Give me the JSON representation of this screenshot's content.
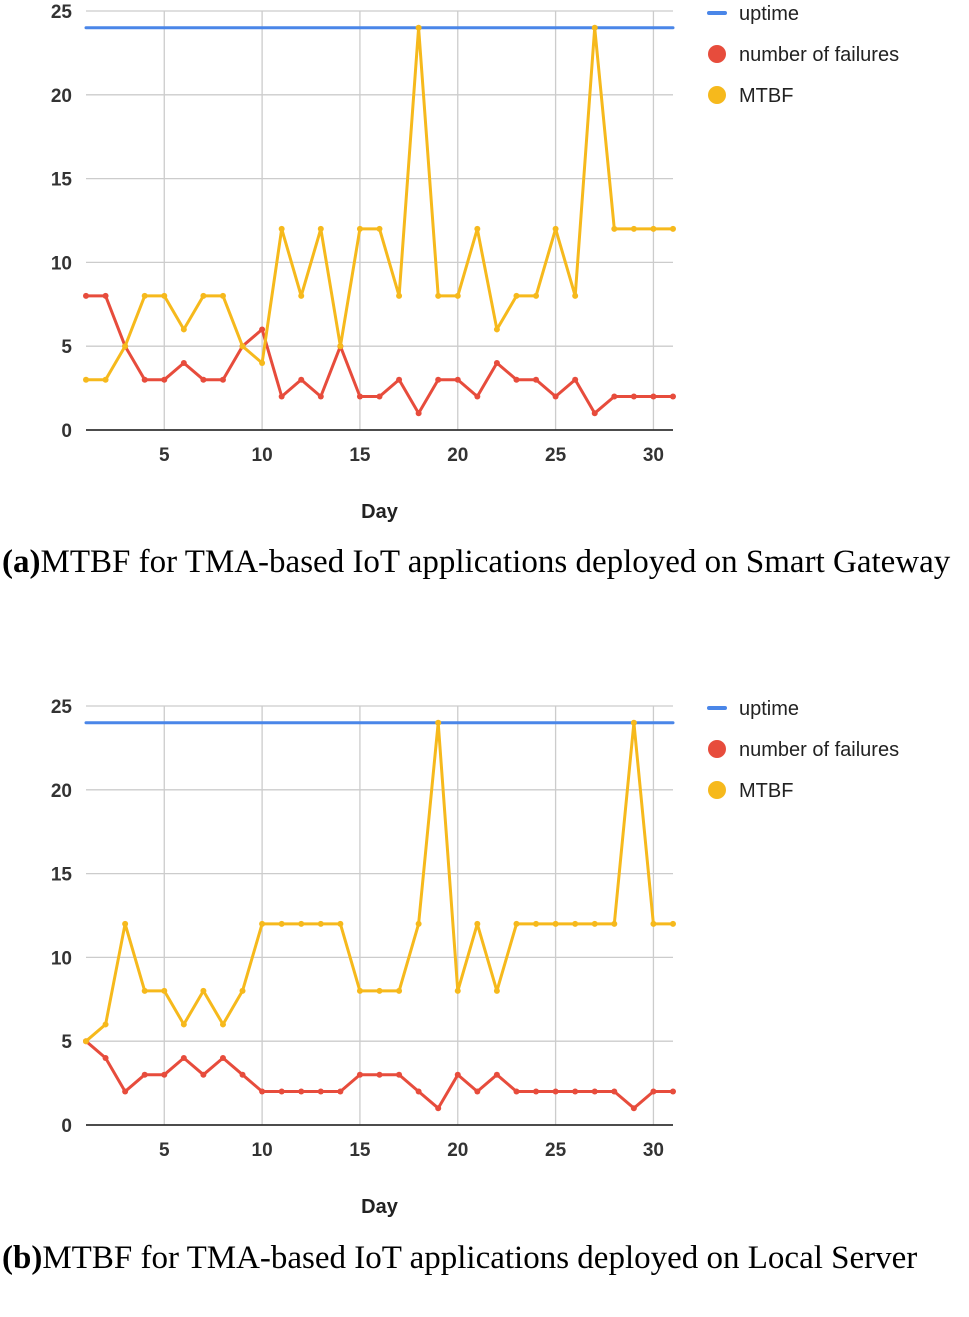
{
  "chart_data": [
    {
      "type": "line",
      "xlabel": "Day",
      "ylabel": "",
      "xlim": [
        1,
        31
      ],
      "ylim": [
        0,
        25
      ],
      "xticks": [
        5,
        10,
        15,
        20,
        25,
        30
      ],
      "yticks": [
        0,
        5,
        10,
        15,
        20,
        25
      ],
      "grid": true,
      "legend": "top-right",
      "x": [
        1,
        2,
        3,
        4,
        5,
        6,
        7,
        8,
        9,
        10,
        11,
        12,
        13,
        14,
        15,
        16,
        17,
        18,
        19,
        20,
        21,
        22,
        23,
        24,
        25,
        26,
        27,
        28,
        29,
        30,
        31
      ],
      "series": [
        {
          "name": "uptime",
          "color": "#4a86e8",
          "values": [
            24,
            24,
            24,
            24,
            24,
            24,
            24,
            24,
            24,
            24,
            24,
            24,
            24,
            24,
            24,
            24,
            24,
            24,
            24,
            24,
            24,
            24,
            24,
            24,
            24,
            24,
            24,
            24,
            24,
            24,
            24
          ]
        },
        {
          "name": "number of failures",
          "color": "#e74c3c",
          "values": [
            8,
            8,
            5,
            3,
            3,
            4,
            3,
            3,
            5,
            6,
            2,
            3,
            2,
            5,
            2,
            2,
            3,
            1,
            3,
            3,
            2,
            4,
            3,
            3,
            2,
            3,
            1,
            2,
            2,
            2,
            2
          ]
        },
        {
          "name": "MTBF",
          "color": "#f6b91c",
          "values": [
            3,
            3,
            5,
            8,
            8,
            6,
            8,
            8,
            5,
            4,
            12,
            8,
            12,
            5,
            12,
            12,
            8,
            24,
            8,
            8,
            12,
            6,
            8,
            8,
            12,
            8,
            24,
            12,
            12,
            12,
            12
          ]
        }
      ]
    },
    {
      "type": "line",
      "xlabel": "Day",
      "ylabel": "",
      "xlim": [
        1,
        31
      ],
      "ylim": [
        0,
        25
      ],
      "xticks": [
        5,
        10,
        15,
        20,
        25,
        30
      ],
      "yticks": [
        0,
        5,
        10,
        15,
        20,
        25
      ],
      "grid": true,
      "legend": "top-right",
      "x": [
        1,
        2,
        3,
        4,
        5,
        6,
        7,
        8,
        9,
        10,
        11,
        12,
        13,
        14,
        15,
        16,
        17,
        18,
        19,
        20,
        21,
        22,
        23,
        24,
        25,
        26,
        27,
        28,
        29,
        30,
        31
      ],
      "series": [
        {
          "name": "uptime",
          "color": "#4a86e8",
          "values": [
            24,
            24,
            24,
            24,
            24,
            24,
            24,
            24,
            24,
            24,
            24,
            24,
            24,
            24,
            24,
            24,
            24,
            24,
            24,
            24,
            24,
            24,
            24,
            24,
            24,
            24,
            24,
            24,
            24,
            24,
            24
          ]
        },
        {
          "name": "number of failures",
          "color": "#e74c3c",
          "values": [
            5,
            4,
            2,
            3,
            3,
            4,
            3,
            4,
            3,
            2,
            2,
            2,
            2,
            2,
            3,
            3,
            3,
            2,
            1,
            3,
            2,
            3,
            2,
            2,
            2,
            2,
            2,
            2,
            1,
            2,
            2
          ]
        },
        {
          "name": "MTBF",
          "color": "#f6b91c",
          "values": [
            5,
            6,
            12,
            8,
            8,
            6,
            8,
            6,
            8,
            12,
            12,
            12,
            12,
            12,
            8,
            8,
            8,
            12,
            24,
            8,
            12,
            8,
            12,
            12,
            12,
            12,
            12,
            12,
            24,
            12,
            12
          ]
        }
      ]
    }
  ],
  "captions": [
    {
      "label": "(a)",
      "text": "MTBF for TMA-based IoT applications deployed on Smart Gateway"
    },
    {
      "label": "(b)",
      "text": "MTBF for TMA-based IoT applications deployed on Local Server"
    }
  ]
}
